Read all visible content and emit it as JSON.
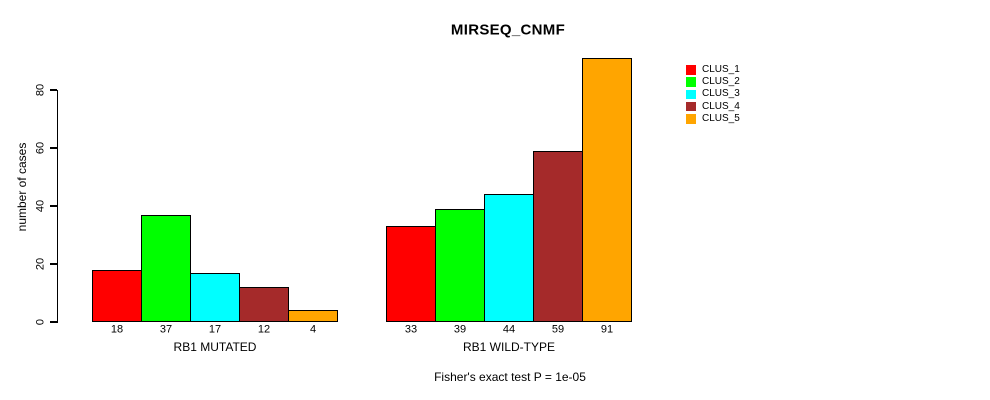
{
  "chart_data": {
    "type": "bar",
    "title": "MIRSEQ_CNMF",
    "ylabel": "number of cases",
    "xlabel": "",
    "yticks": [
      0,
      20,
      40,
      60,
      80
    ],
    "ylim": [
      0,
      91
    ],
    "grid": false,
    "legend_position": "right",
    "axis_color": "#000000",
    "bar_border_color": "#000000",
    "series": [
      {
        "name": "CLUS_1",
        "color": "#ff0000"
      },
      {
        "name": "CLUS_2",
        "color": "#00ff00"
      },
      {
        "name": "CLUS_3",
        "color": "#00ffff"
      },
      {
        "name": "CLUS_4",
        "color": "#a52a2a"
      },
      {
        "name": "CLUS_5",
        "color": "#ffa500"
      }
    ],
    "groups": [
      {
        "label": "RB1 MUTATED",
        "values": [
          18,
          37,
          17,
          12,
          4
        ]
      },
      {
        "label": "RB1 WILD-TYPE",
        "values": [
          33,
          39,
          44,
          59,
          91
        ]
      }
    ],
    "annotation": "Fisher's exact test P = 1e-05"
  }
}
